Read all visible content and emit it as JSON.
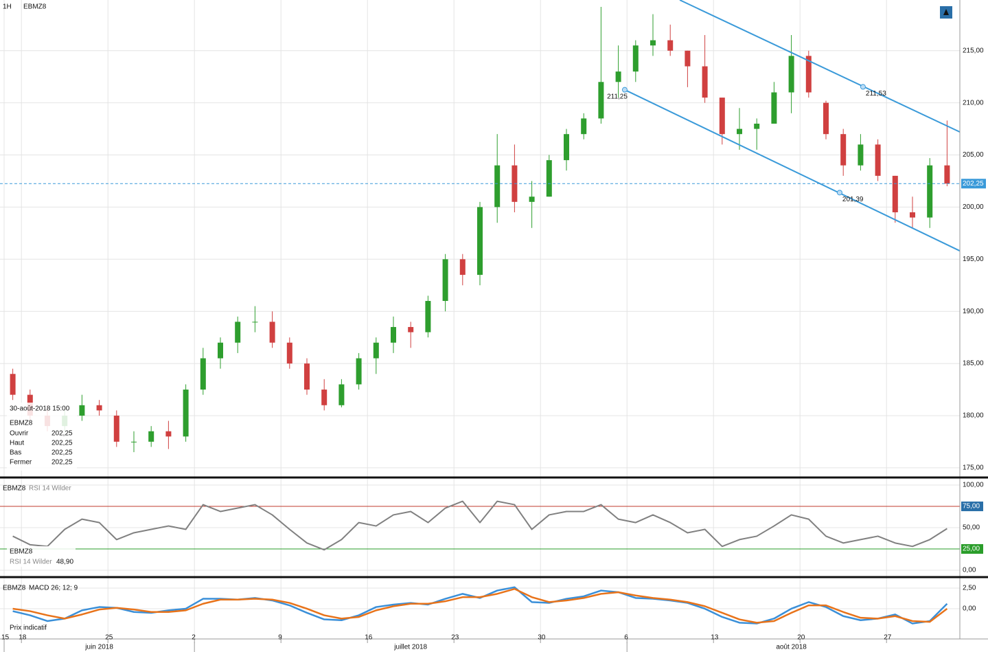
{
  "chart_data": [
    {
      "type": "candlestick",
      "interval": "1H",
      "symbol": "EBMZ8",
      "categories": [
        "15",
        "18",
        null,
        null,
        null,
        null,
        "25",
        null,
        null,
        null,
        null,
        "2",
        null,
        null,
        null,
        null,
        "9",
        null,
        null,
        null,
        null,
        "16",
        null,
        null,
        null,
        null,
        "23",
        null,
        null,
        null,
        null,
        "30",
        null,
        null,
        null,
        null,
        "6",
        null,
        null,
        null,
        null,
        "13",
        null,
        null,
        null,
        null,
        "20",
        null,
        null,
        null,
        null,
        "27",
        null,
        null,
        null
      ],
      "months": [
        {
          "label": "juin 2018",
          "start": 0
        },
        {
          "label": "juillet 2018",
          "start": 11
        },
        {
          "label": "août 2018",
          "start": 36
        }
      ],
      "open": [
        184,
        182,
        180,
        179,
        180,
        181,
        180,
        177.5,
        177.5,
        178.5,
        178,
        182.5,
        185.5,
        187,
        189,
        189,
        187,
        185,
        182.5,
        181,
        183,
        185.5,
        187,
        188.5,
        188,
        191,
        195,
        193.5,
        200,
        204,
        200.5,
        201,
        204.5,
        207,
        208.5,
        212,
        213,
        215.5,
        216,
        215,
        213.5,
        210.5,
        207,
        207.5,
        208,
        211,
        214.5,
        210,
        207,
        204,
        206,
        203,
        199.5,
        199,
        204
      ],
      "high": [
        184.5,
        182.5,
        181,
        180.5,
        182,
        181.5,
        180.5,
        178.5,
        179,
        179.5,
        183,
        186.5,
        187.5,
        189.5,
        190.5,
        190,
        187.5,
        185.5,
        183.5,
        183.5,
        186,
        187.5,
        189.5,
        189,
        191.5,
        195.5,
        195.5,
        200.5,
        207,
        206,
        202.5,
        205,
        207.5,
        209,
        219.2,
        215.5,
        216,
        218.5,
        217.5,
        215,
        216.5,
        210.5,
        209.5,
        208.5,
        212,
        216.5,
        215,
        210.2,
        207.5,
        207,
        206.5,
        203,
        201,
        204.7,
        208.3
      ],
      "low": [
        181.5,
        179.5,
        178.5,
        178.5,
        179.5,
        180,
        177,
        176.5,
        177,
        176.8,
        177.5,
        182,
        184.5,
        186,
        188,
        186.5,
        184.5,
        182,
        180.5,
        180.8,
        182.5,
        184,
        186,
        186.5,
        187.5,
        190,
        192.5,
        192.5,
        198.5,
        199.5,
        198,
        201,
        203.5,
        206.5,
        208,
        210.5,
        212,
        214.5,
        214.5,
        211.5,
        210,
        206,
        205.5,
        205.5,
        208,
        209,
        210.5,
        206.5,
        203,
        203.5,
        202.5,
        198.5,
        198,
        198,
        202
      ],
      "close": [
        182,
        180,
        179,
        180,
        181,
        180.5,
        177.5,
        177.5,
        178.5,
        178,
        182.5,
        185.5,
        187,
        189,
        189,
        187,
        185,
        182.5,
        181,
        183,
        185.5,
        187,
        188.5,
        188,
        191,
        195,
        193.5,
        200,
        204,
        200.5,
        201,
        204.5,
        207,
        208.5,
        212,
        213,
        215.5,
        216,
        215,
        213.5,
        210.5,
        207,
        207.5,
        208,
        211,
        214.5,
        211,
        207,
        204,
        206,
        203,
        199.5,
        199,
        204,
        202.25
      ],
      "up_color": "#2e9e2e",
      "down_color": "#d04040",
      "ylim": [
        174.2,
        219.86
      ],
      "yticks": [
        {
          "value": 175,
          "label": "175,00"
        },
        {
          "value": 180,
          "label": "180,00"
        },
        {
          "value": 185,
          "label": "185,00"
        },
        {
          "value": 190,
          "label": "190,00"
        },
        {
          "value": 195,
          "label": "195,00"
        },
        {
          "value": 200,
          "label": "200,00"
        },
        {
          "value": 205,
          "label": "205,00"
        },
        {
          "value": 210,
          "label": "210,00"
        },
        {
          "value": 215,
          "label": "215,00"
        }
      ],
      "grid": true,
      "last": {
        "value": 202.25,
        "label": "202,25"
      },
      "channels": [
        {
          "x": [
            35.87,
            55.24
          ],
          "y": [
            211.25,
            195.8
          ]
        },
        {
          "x": [
            39.05,
            55.24
          ],
          "y": [
            219.86,
            207.2
          ]
        }
      ],
      "channel_color": "#3a9ad9",
      "annotations": [
        {
          "x": 35.87,
          "value": 211.25,
          "label": "211,25"
        },
        {
          "x": 49.64,
          "value": 211.53,
          "label": "211,53"
        },
        {
          "x": 48.29,
          "value": 201.39,
          "label": "201,39"
        }
      ],
      "info": {
        "date": "30-août-2018 15:00",
        "symbol": "EBMZ8",
        "rows": [
          [
            "Ouvrir",
            "202,25"
          ],
          [
            "Haut",
            "202,25"
          ],
          [
            "Bas",
            "202,25"
          ],
          [
            "Fermer",
            "202,25"
          ]
        ]
      }
    },
    {
      "type": "line",
      "symbol": "EBMZ8",
      "indicator": "RSI 14 Wilder",
      "last_label": "48,90",
      "series": [
        {
          "name": "RSI 14 Wilder",
          "color": "#808080",
          "values": [
            40,
            30,
            28,
            48,
            60,
            56,
            36,
            44,
            48,
            52,
            48,
            77,
            69,
            73,
            77,
            65,
            48,
            32,
            24,
            36,
            56,
            52,
            65,
            69,
            56,
            73,
            81,
            56,
            81,
            77,
            48,
            65,
            69,
            69,
            77,
            60,
            56,
            65,
            56,
            44,
            48,
            28,
            36,
            40,
            52,
            65,
            60,
            40,
            32,
            36,
            40,
            32,
            28,
            36,
            48.9
          ]
        }
      ],
      "ylim": [
        -8.06,
        107.3
      ],
      "yticks": [
        {
          "value": 0,
          "label": "0,00"
        },
        {
          "value": 25,
          "label": "25,00"
        },
        {
          "value": 50,
          "label": "50,00"
        },
        {
          "value": 75,
          "label": "75,00"
        },
        {
          "value": 100,
          "label": "100,00"
        }
      ],
      "levels": [
        {
          "value": 75,
          "color": "#c0392b"
        },
        {
          "value": 25,
          "color": "#2a9d2a"
        }
      ]
    },
    {
      "type": "line",
      "symbol": "EBMZ8",
      "indicator": "MACD 26; 12; 9",
      "note": "Prix indicatif",
      "series": [
        {
          "color": "#3a8fd8",
          "values": [
            -0.3,
            -0.8,
            -1.5,
            -1.2,
            -0.2,
            0.2,
            0.1,
            -0.4,
            -0.5,
            -0.2,
            0,
            1.2,
            1.2,
            1.1,
            1.3,
            1.0,
            0.4,
            -0.5,
            -1.3,
            -1.4,
            -0.8,
            0.2,
            0.5,
            0.7,
            0.5,
            1.2,
            1.8,
            1.3,
            2.2,
            2.6,
            0.8,
            0.7,
            1.2,
            1.5,
            2.2,
            2.0,
            1.3,
            1.2,
            1.0,
            0.7,
            0.0,
            -1.0,
            -1.7,
            -1.8,
            -1.2,
            0.0,
            0.8,
            0.2,
            -0.9,
            -1.4,
            -1.2,
            -0.7,
            -1.8,
            -1.5,
            0.6
          ]
        },
        {
          "color": "#e8731a",
          "values": [
            0,
            -0.3,
            -0.8,
            -1.2,
            -0.7,
            -0.1,
            0.1,
            -0.1,
            -0.4,
            -0.4,
            -0.2,
            0.6,
            1.1,
            1.1,
            1.2,
            1.1,
            0.7,
            0.0,
            -0.8,
            -1.2,
            -1.0,
            -0.2,
            0.3,
            0.6,
            0.6,
            0.9,
            1.4,
            1.4,
            1.8,
            2.4,
            1.4,
            0.8,
            1.0,
            1.3,
            1.8,
            2.0,
            1.6,
            1.3,
            1.1,
            0.8,
            0.3,
            -0.5,
            -1.3,
            -1.7,
            -1.5,
            -0.5,
            0.4,
            0.4,
            -0.4,
            -1.1,
            -1.2,
            -0.9,
            -1.5,
            -1.6,
            0.0
          ]
        }
      ],
      "ylim": [
        -3.67,
        3.58
      ],
      "yticks": [
        {
          "value": 0,
          "label": "0,00"
        },
        {
          "value": 2.5,
          "label": "2,50"
        }
      ]
    }
  ]
}
